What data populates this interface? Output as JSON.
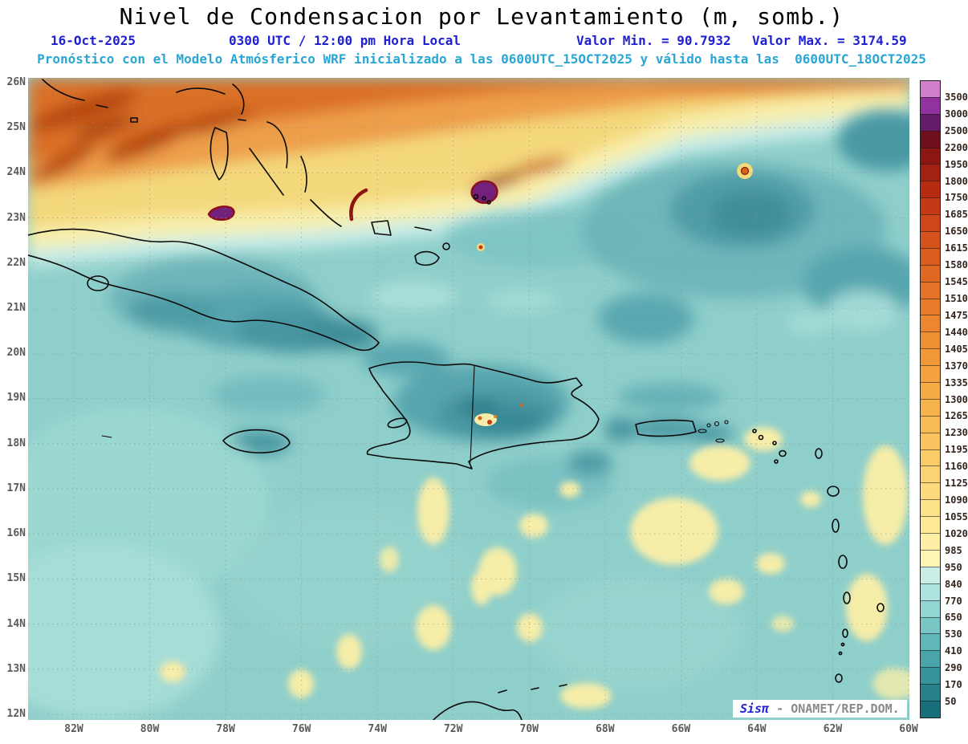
{
  "header": {
    "title": "Nivel de Condensacion por Levantamiento (m, somb.)",
    "date": "16-Oct-2025",
    "time": "0300 UTC / 12:00 pm Hora Local",
    "min_label": "Valor Min. = 90.7932",
    "max_label": "Valor Max. = 3174.59",
    "model_line": "Pronóstico con el Modelo Atmósferico WRF inicializado a las 0600UTC_15OCT2025 y válido hasta las  0600UTC_18OCT2025"
  },
  "axes": {
    "lat_labels": [
      "26N",
      "25N",
      "24N",
      "23N",
      "22N",
      "21N",
      "20N",
      "19N",
      "18N",
      "17N",
      "16N",
      "15N",
      "14N",
      "13N",
      "12N"
    ],
    "lon_labels": [
      "82W",
      "80W",
      "78W",
      "76W",
      "74W",
      "72W",
      "70W",
      "68W",
      "66W",
      "64W",
      "62W",
      "60W"
    ]
  },
  "colorbar": {
    "labels_top_to_bottom": [
      "3500",
      "3000",
      "2500",
      "2200",
      "1950",
      "1800",
      "1750",
      "1685",
      "1650",
      "1615",
      "1580",
      "1545",
      "1510",
      "1475",
      "1440",
      "1405",
      "1370",
      "1335",
      "1300",
      "1265",
      "1230",
      "1195",
      "1160",
      "1125",
      "1090",
      "1055",
      "1020",
      "985",
      "950",
      "840",
      "770",
      "650",
      "530",
      "410",
      "290",
      "170",
      "50"
    ],
    "colors_top_to_bottom": [
      "#cf7ecb",
      "#9032a0",
      "#641b68",
      "#70101c",
      "#8c1712",
      "#a32112",
      "#b62c13",
      "#c43a16",
      "#cd4719",
      "#d4521c",
      "#da5d20",
      "#df6823",
      "#e47227",
      "#e87c2b",
      "#ec862f",
      "#ef9034",
      "#f19939",
      "#f3a23f",
      "#f5ab46",
      "#f6b44e",
      "#f8bc56",
      "#f9c45f",
      "#facc68",
      "#fbd372",
      "#fcda7d",
      "#fce289",
      "#fde996",
      "#fdefa5",
      "#fef5b5",
      "#c9eee8",
      "#aee3df",
      "#93d5d2",
      "#79c6c5",
      "#60b6b8",
      "#4aa5aa",
      "#36939b",
      "#26818b",
      "#186f7b"
    ]
  },
  "watermark": {
    "brand": "Sisπ",
    "text": " - ONAMET/REP.DOM."
  },
  "chart_data": {
    "type": "heatmap",
    "title": "Nivel de Condensacion por Levantamiento (m, somb.)",
    "units": "m",
    "value_min": 90.7932,
    "value_max": 3174.59,
    "valid_time": "0300 UTC / 12:00 pm Hora Local",
    "date": "16-Oct-2025",
    "model": "WRF",
    "init": "0600UTC_15OCT2025",
    "end": "0600UTC_18OCT2025",
    "lat_range": [
      "12N",
      "26N"
    ],
    "lon_range": [
      "82W",
      "60W"
    ],
    "grid": "dotted",
    "legend_position": "right",
    "colorbar_levels": [
      50,
      170,
      290,
      410,
      530,
      650,
      770,
      840,
      950,
      985,
      1020,
      1055,
      1090,
      1125,
      1160,
      1195,
      1230,
      1265,
      1300,
      1335,
      1370,
      1405,
      1440,
      1475,
      1510,
      1545,
      1580,
      1615,
      1650,
      1685,
      1750,
      1800,
      1950,
      2200,
      2500,
      3000,
      3500
    ]
  },
  "palette": {
    "title": "#000000",
    "blue": "#1f1fd3",
    "cyan-text": "#2aa6d5",
    "axis-text": "#5a5a5a",
    "watermark-gray": "#8a8a8a",
    "coast": "#0a0a0a",
    "ocean": "#8fcfcb",
    "band-cyan": "#c9ece6",
    "band-paleyellow": "#f8efad",
    "band-yellow": "#f4d87c",
    "band-orange": "#ed9e4a",
    "band-deeporange": "#da6f28",
    "band-streak": "#b6470f",
    "patch-yellow": "#f6eda8",
    "purple": "#73217c",
    "purple-edge": "#8b0f1f"
  }
}
